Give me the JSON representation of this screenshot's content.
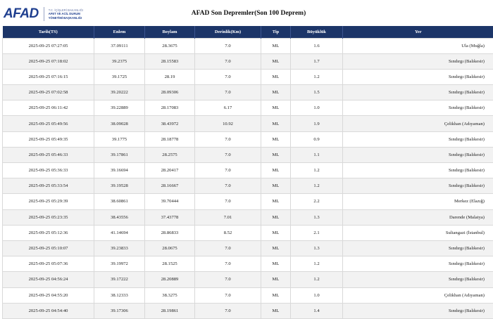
{
  "header": {
    "logo_mark": "AFAD",
    "logo_line1": "T.C. İÇİŞLERİ BAKANLIĞI",
    "logo_line2": "AFET VE ACİL DURUM",
    "logo_line3": "YÖNETİMİ BAŞKANLIĞI",
    "title": "AFAD Son Depremler(Son 100 Deprem)"
  },
  "table": {
    "columns": [
      "Tarih(TS)",
      "Enlem",
      "Boylam",
      "Derinlik(Km)",
      "Tip",
      "Büyüklük",
      "Yer"
    ],
    "rows": [
      {
        "tarih": "2025-09-25 07:27:05",
        "enlem": "37.09111",
        "boylam": "28.3675",
        "derinlik": "7.0",
        "tip": "ML",
        "buyukluk": "1.6",
        "yer": "Ula (Muğla)"
      },
      {
        "tarih": "2025-09-25 07:18:02",
        "enlem": "39.2375",
        "boylam": "28.15583",
        "derinlik": "7.0",
        "tip": "ML",
        "buyukluk": "1.7",
        "yer": "Sındırgı (Balıkesir)"
      },
      {
        "tarih": "2025-09-25 07:16:15",
        "enlem": "39.1725",
        "boylam": "28.19",
        "derinlik": "7.0",
        "tip": "ML",
        "buyukluk": "1.2",
        "yer": "Sındırgı (Balıkesir)"
      },
      {
        "tarih": "2025-09-25 07:02:58",
        "enlem": "39.20222",
        "boylam": "28.09306",
        "derinlik": "7.0",
        "tip": "ML",
        "buyukluk": "1.5",
        "yer": "Sındırgı (Balıkesir)"
      },
      {
        "tarih": "2025-09-25 06:11:42",
        "enlem": "39.22889",
        "boylam": "28.17083",
        "derinlik": "6.17",
        "tip": "ML",
        "buyukluk": "1.0",
        "yer": "Sındırgı (Balıkesir)"
      },
      {
        "tarih": "2025-09-25 05:49:56",
        "enlem": "38.09028",
        "boylam": "38.43972",
        "derinlik": "10.92",
        "tip": "ML",
        "buyukluk": "1.9",
        "yer": "Çelikhan (Adıyaman)"
      },
      {
        "tarih": "2025-09-25 05:49:35",
        "enlem": "39.1775",
        "boylam": "28.18778",
        "derinlik": "7.0",
        "tip": "ML",
        "buyukluk": "0.9",
        "yer": "Sındırgı (Balıkesir)"
      },
      {
        "tarih": "2025-09-25 05:46:33",
        "enlem": "39.17861",
        "boylam": "28.2575",
        "derinlik": "7.0",
        "tip": "ML",
        "buyukluk": "1.1",
        "yer": "Sındırgı (Balıkesir)"
      },
      {
        "tarih": "2025-09-25 05:36:33",
        "enlem": "39.16694",
        "boylam": "28.20417",
        "derinlik": "7.0",
        "tip": "ML",
        "buyukluk": "1.2",
        "yer": "Sındırgı (Balıkesir)"
      },
      {
        "tarih": "2025-09-25 05:33:54",
        "enlem": "39.19528",
        "boylam": "28.16667",
        "derinlik": "7.0",
        "tip": "ML",
        "buyukluk": "1.2",
        "yer": "Sındırgı (Balıkesir)"
      },
      {
        "tarih": "2025-09-25 05:29:39",
        "enlem": "38.60861",
        "boylam": "39.70444",
        "derinlik": "7.0",
        "tip": "ML",
        "buyukluk": "2.2",
        "yer": "Merkez (Elazığ)"
      },
      {
        "tarih": "2025-09-25 05:23:35",
        "enlem": "38.43556",
        "boylam": "37.43778",
        "derinlik": "7.01",
        "tip": "ML",
        "buyukluk": "1.3",
        "yer": "Darende (Malatya)"
      },
      {
        "tarih": "2025-09-25 05:12:36",
        "enlem": "41.14694",
        "boylam": "28.86833",
        "derinlik": "8.52",
        "tip": "ML",
        "buyukluk": "2.1",
        "yer": "Sultangazi (İstanbul)"
      },
      {
        "tarih": "2025-09-25 05:10:07",
        "enlem": "39.23833",
        "boylam": "28.0675",
        "derinlik": "7.0",
        "tip": "ML",
        "buyukluk": "1.3",
        "yer": "Sındırgı (Balıkesir)"
      },
      {
        "tarih": "2025-09-25 05:07:36",
        "enlem": "39.19972",
        "boylam": "28.1525",
        "derinlik": "7.0",
        "tip": "ML",
        "buyukluk": "1.2",
        "yer": "Sındırgı (Balıkesir)"
      },
      {
        "tarih": "2025-09-25 04:56:24",
        "enlem": "39.17222",
        "boylam": "28.20889",
        "derinlik": "7.0",
        "tip": "ML",
        "buyukluk": "1.2",
        "yer": "Sındırgı (Balıkesir)"
      },
      {
        "tarih": "2025-09-25 04:55:20",
        "enlem": "38.12333",
        "boylam": "38.3275",
        "derinlik": "7.0",
        "tip": "ML",
        "buyukluk": "1.0",
        "yer": "Çelikhan (Adıyaman)"
      },
      {
        "tarih": "2025-09-25 04:54:40",
        "enlem": "39.17306",
        "boylam": "28.19861",
        "derinlik": "7.0",
        "tip": "ML",
        "buyukluk": "1.4",
        "yer": "Sındırgı (Balıkesir)"
      }
    ]
  },
  "colors": {
    "header_bg": "#1c3568",
    "brand": "#1f3f8f",
    "row_alt": "#f2f2f2"
  }
}
